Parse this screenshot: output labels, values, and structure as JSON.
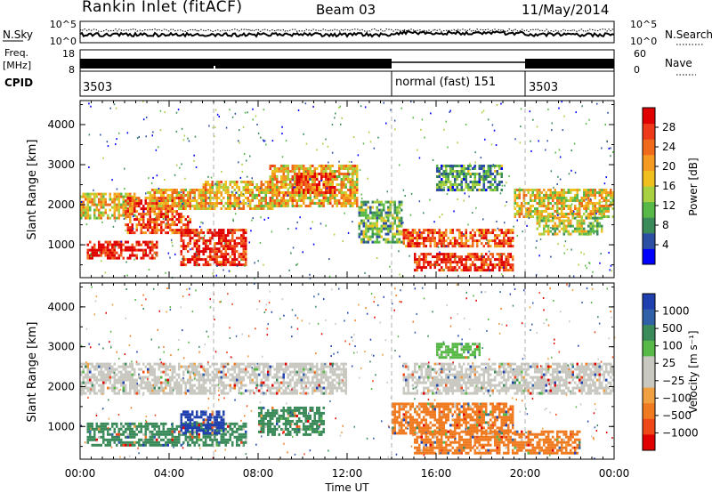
{
  "header": {
    "title": "Rankin Inlet (fitACF)",
    "beam": "Beam 03",
    "date": "11/May/2014"
  },
  "noise_panel": {
    "left_label": "N.Sky",
    "right_label": "N.Search",
    "left_ticks": [
      "10^5",
      "10^0"
    ],
    "right_ticks": [
      "10^5",
      "10^0"
    ]
  },
  "freq_panel": {
    "left_label_line1": "Freq.",
    "left_label_line2": "[MHz]",
    "right_label": "Nave",
    "left_ticks": [
      "18",
      "8"
    ],
    "right_ticks": [
      "60",
      "0"
    ]
  },
  "cpid_panel": {
    "label": "CPID",
    "segments": [
      {
        "text": "3503",
        "start_hour": 0,
        "end_hour": 14
      },
      {
        "text": "normal (fast) 151",
        "start_hour": 14,
        "end_hour": 20
      },
      {
        "text": "3503",
        "start_hour": 20,
        "end_hour": 24
      }
    ]
  },
  "chart_data": [
    {
      "type": "heatmap",
      "name": "power",
      "ylabel": "Slant Range [km]",
      "ylim": [
        180,
        4600
      ],
      "xlim": [
        0,
        24
      ],
      "y_ticks": [
        "1000",
        "2000",
        "3000",
        "4000"
      ],
      "colorbar_label": "Power [dB]",
      "colorbar_ticks": [
        "4",
        "8",
        "12",
        "16",
        "20",
        "24",
        "28"
      ],
      "colorbar_colors": [
        "#0000ff",
        "#2d4fa3",
        "#3a8a5a",
        "#58b848",
        "#a8d040",
        "#f0c020",
        "#f59a20",
        "#f06a1c",
        "#ee3a18",
        "#e00000"
      ],
      "vlines_hour": [
        6,
        14,
        20
      ],
      "bands": [
        {
          "h0": 0.0,
          "h1": 2.5,
          "r0": 1700,
          "r1": 2300,
          "level": 0.55
        },
        {
          "h0": 0.3,
          "h1": 3.5,
          "r0": 650,
          "r1": 1100,
          "level": 0.92
        },
        {
          "h0": 2.0,
          "h1": 5.0,
          "r0": 1300,
          "r1": 2200,
          "level": 0.8
        },
        {
          "h0": 3.0,
          "h1": 6.0,
          "r0": 1900,
          "r1": 2400,
          "level": 0.6
        },
        {
          "h0": 4.5,
          "h1": 7.5,
          "r0": 500,
          "r1": 1400,
          "level": 0.9
        },
        {
          "h0": 5.5,
          "h1": 9.0,
          "r0": 1900,
          "r1": 2600,
          "level": 0.6
        },
        {
          "h0": 8.5,
          "h1": 12.5,
          "r0": 2000,
          "r1": 3000,
          "level": 0.6
        },
        {
          "h0": 9.5,
          "h1": 11.5,
          "r0": 2300,
          "r1": 2800,
          "level": 0.85
        },
        {
          "h0": 12.5,
          "h1": 14.5,
          "r0": 1100,
          "r1": 2100,
          "level": 0.35
        },
        {
          "h0": 14.5,
          "h1": 19.5,
          "r0": 1000,
          "r1": 1400,
          "level": 0.78
        },
        {
          "h0": 15.0,
          "h1": 19.5,
          "r0": 400,
          "r1": 800,
          "level": 0.88
        },
        {
          "h0": 16.0,
          "h1": 19.0,
          "r0": 2400,
          "r1": 3000,
          "level": 0.3
        },
        {
          "h0": 19.5,
          "h1": 24.0,
          "r0": 1700,
          "r1": 2400,
          "level": 0.55
        },
        {
          "h0": 20.5,
          "h1": 23.5,
          "r0": 1300,
          "r1": 1700,
          "level": 0.45
        }
      ]
    },
    {
      "type": "heatmap",
      "name": "velocity",
      "ylabel": "Slant Range [km]",
      "ylim": [
        180,
        4600
      ],
      "xlim": [
        0,
        24
      ],
      "y_ticks": [
        "1000",
        "2000",
        "3000",
        "4000"
      ],
      "x_ticks": [
        "00:00",
        "04:00",
        "08:00",
        "12:00",
        "16:00",
        "20:00",
        "00:00"
      ],
      "xlabel": "Time UT",
      "colorbar_label": "Velocity [m s⁻¹]",
      "colorbar_ticks": [
        "1000",
        "500",
        "100",
        "25",
        "−25",
        "−100",
        "−500",
        "−1000"
      ],
      "colorbar_colors": [
        "#2040b0",
        "#3060a8",
        "#3a8a5a",
        "#58b848",
        "#c8c8c0",
        "#c8c8c0",
        "#f0a040",
        "#f07a20",
        "#ee4818",
        "#e00000"
      ],
      "vlines_hour": [
        6,
        14,
        20
      ],
      "bands": [
        {
          "h0": 0.0,
          "h1": 12.0,
          "r0": 1800,
          "r1": 2600,
          "color": "#c8c8c0"
        },
        {
          "h0": 0.3,
          "h1": 7.5,
          "r0": 500,
          "r1": 1100,
          "color": "#3a8a5a"
        },
        {
          "h0": 4.5,
          "h1": 6.5,
          "r0": 800,
          "r1": 1400,
          "color": "#2040b0"
        },
        {
          "h0": 8.0,
          "h1": 11.0,
          "r0": 800,
          "r1": 1500,
          "color": "#3a8a5a"
        },
        {
          "h0": 14.0,
          "h1": 19.5,
          "r0": 800,
          "r1": 1600,
          "color": "#f07a20"
        },
        {
          "h0": 15.0,
          "h1": 22.5,
          "r0": 300,
          "r1": 900,
          "color": "#f07a20"
        },
        {
          "h0": 14.5,
          "h1": 24.0,
          "r0": 1800,
          "r1": 2600,
          "color": "#c8c8c0"
        },
        {
          "h0": 16.0,
          "h1": 18.0,
          "r0": 2700,
          "r1": 3100,
          "color": "#58b848"
        }
      ]
    }
  ]
}
